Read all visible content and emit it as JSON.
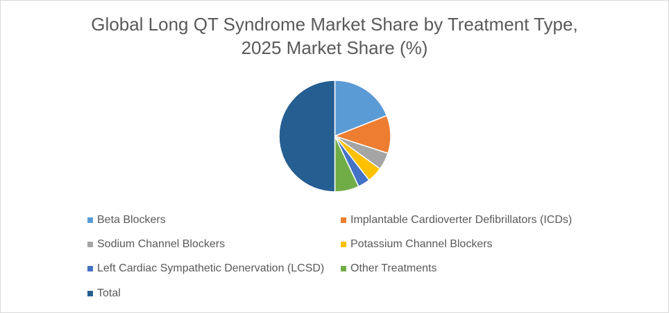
{
  "chart_data": {
    "type": "pie",
    "title": "Global Long QT Syndrome Market Share by Treatment Type, 2025 Market Share (%)",
    "title_lines": [
      "Global Long QT Syndrome Market Share by Treatment Type,",
      "2025 Market Share (%)"
    ],
    "categories": [
      "Beta Blockers",
      "Implantable Cardioverter Defibrillators (ICDs)",
      "Sodium Channel Blockers",
      "Potassium Channel Blockers",
      "Left Cardiac Sympathetic Denervation (LCSD)",
      "Other Treatments",
      "Total"
    ],
    "values": [
      19.0,
      11.0,
      5.0,
      4.5,
      3.5,
      7.0,
      50.0
    ],
    "colors": [
      "#5b9bd5",
      "#ed7d31",
      "#a5a5a5",
      "#ffc000",
      "#4472c4",
      "#70ad47",
      "#255e91"
    ],
    "legend_position": "bottom",
    "start_angle_deg": 0,
    "direction": "clockwise"
  }
}
